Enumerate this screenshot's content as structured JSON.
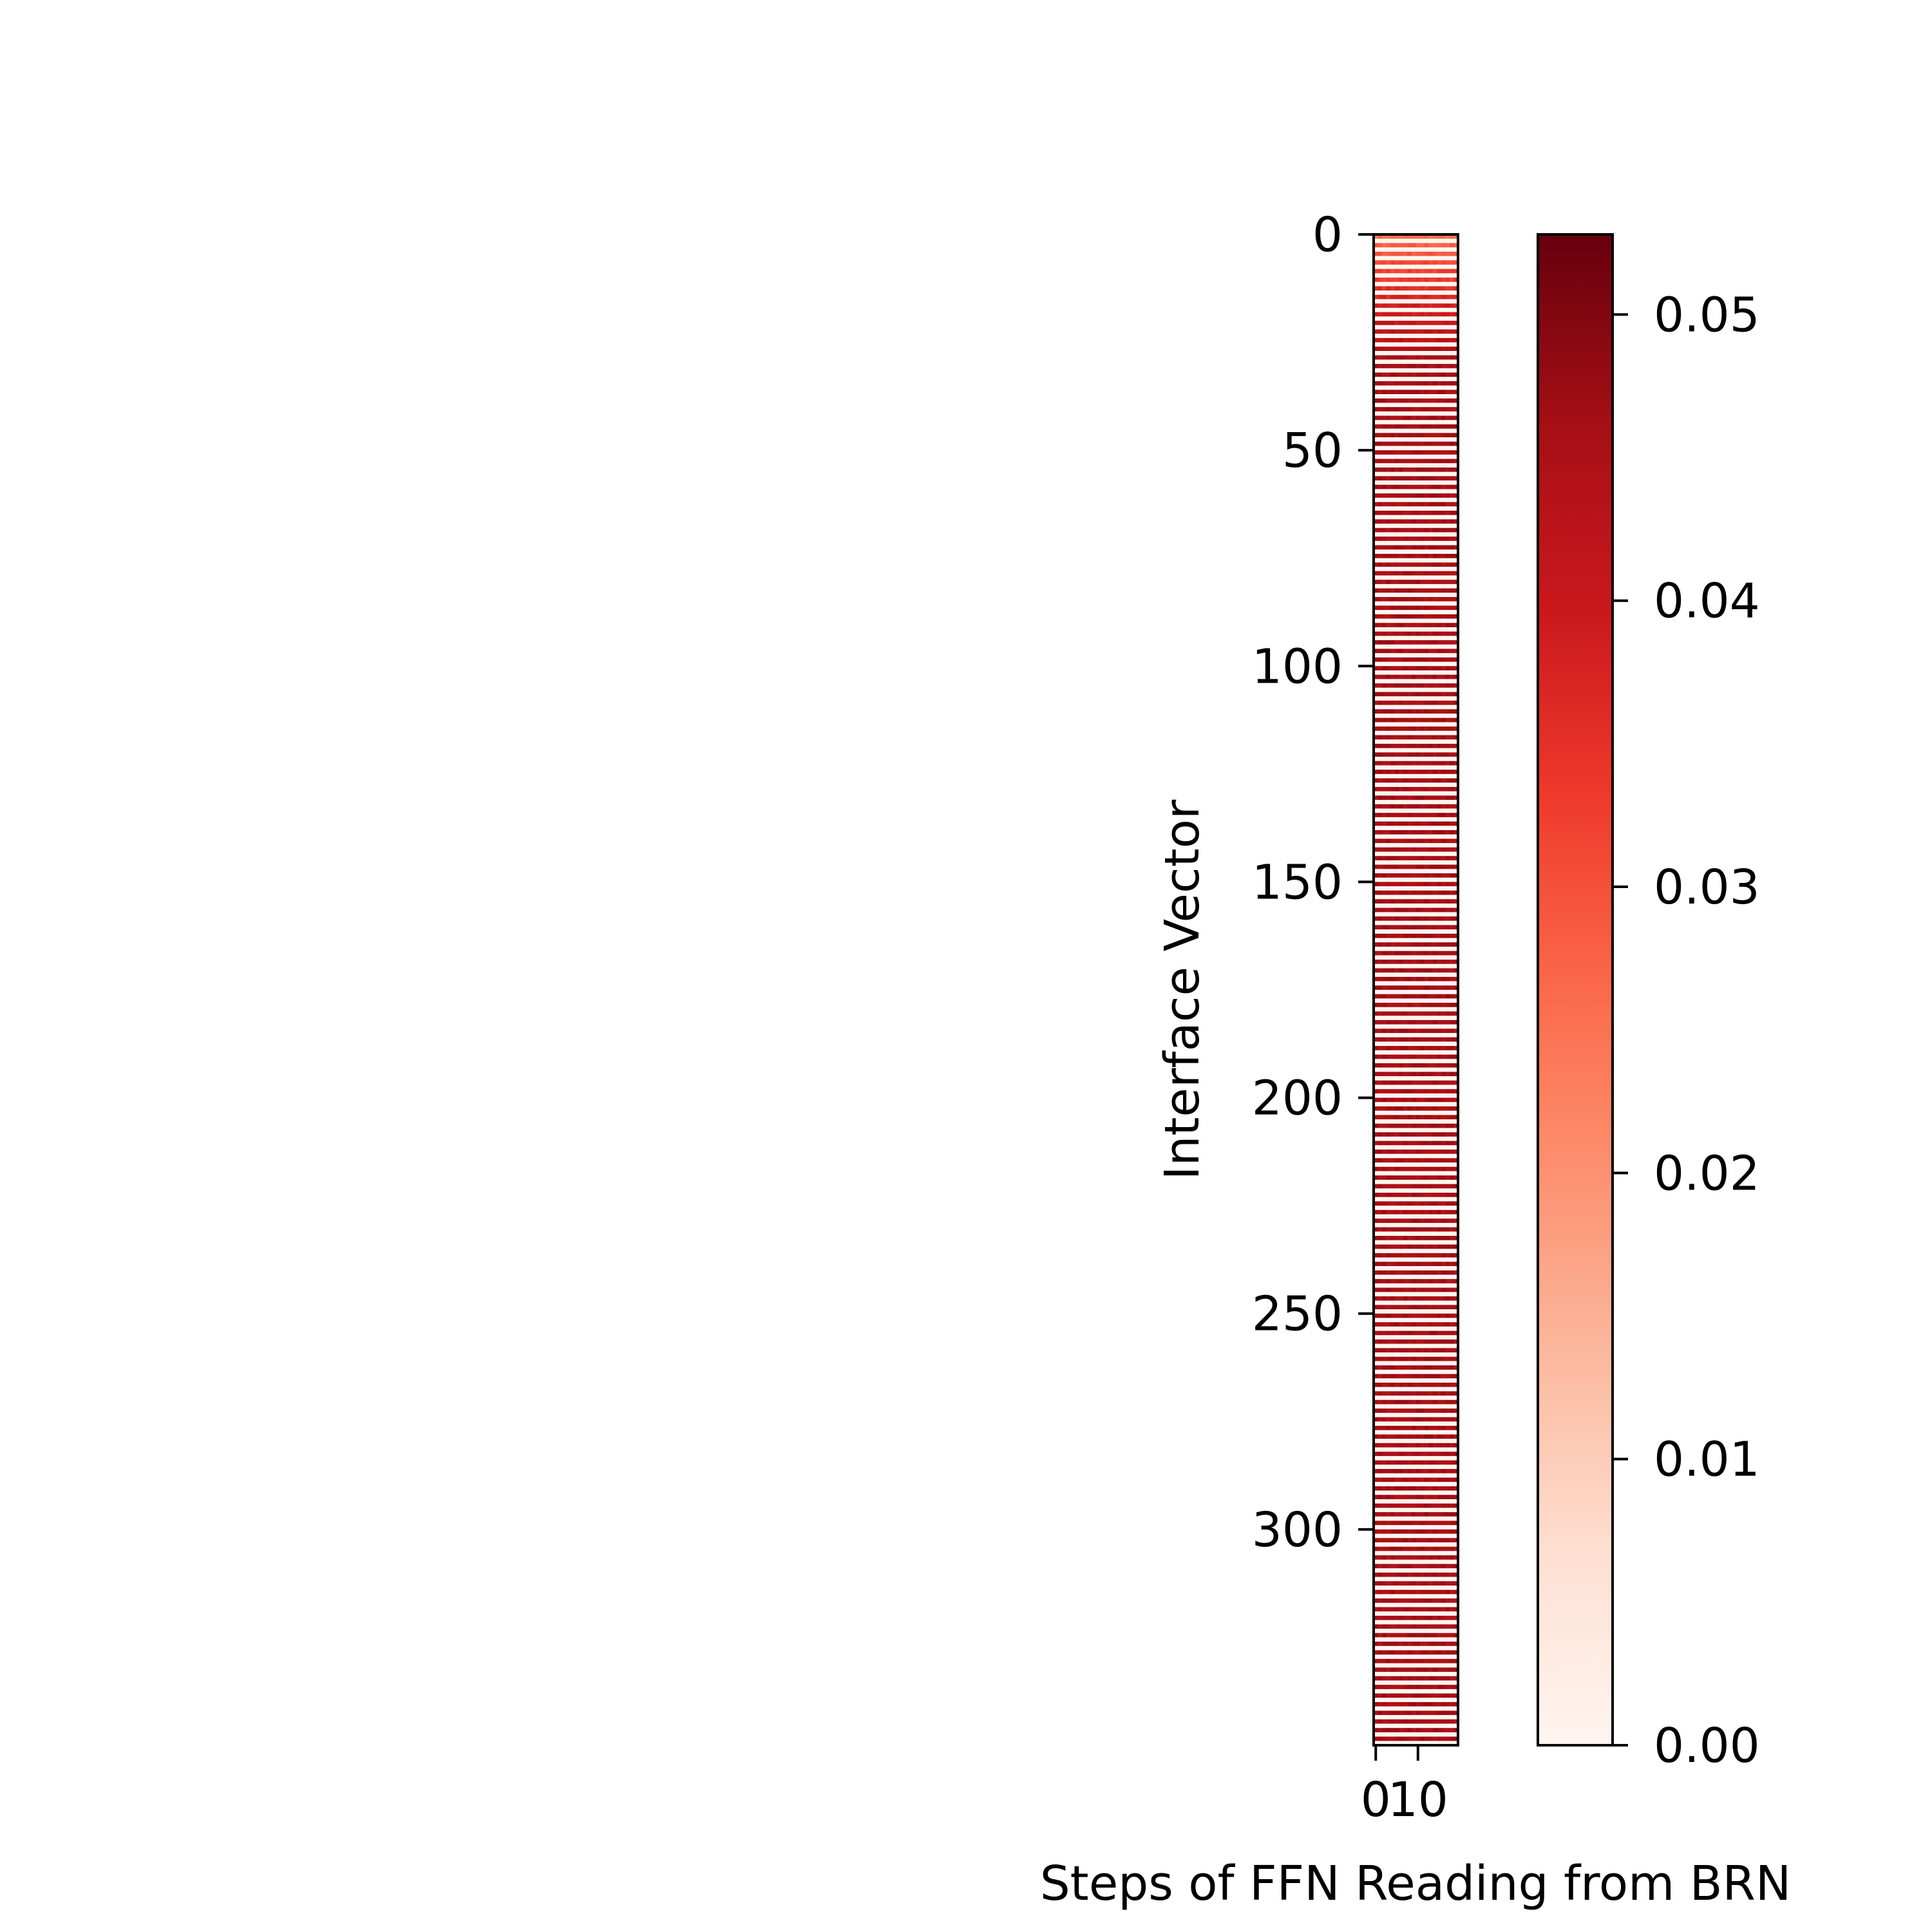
{
  "chart_data": {
    "type": "heatmap",
    "title": "",
    "xlabel": "Steps of FFN Reading from BRN",
    "ylabel": "Interface Vector",
    "rows": 350,
    "cols": 20,
    "y_ticks": [
      0,
      50,
      100,
      150,
      200,
      250,
      300
    ],
    "y_tick_labels": [
      "0",
      "50",
      "100",
      "150",
      "200",
      "250",
      "300"
    ],
    "x_ticks": [
      0,
      10
    ],
    "x_tick_labels": [
      "0",
      "10"
    ],
    "colormap": "Reds",
    "vmin": 0.0,
    "vmax": 0.0528,
    "colorbar_ticks": [
      0.0,
      0.01,
      0.02,
      0.03,
      0.04,
      0.05
    ],
    "colorbar_tick_labels": [
      "0.00",
      "0.01",
      "0.02",
      "0.03",
      "0.04",
      "0.05"
    ],
    "row_value_profile": {
      "description_rows": [
        0,
        10,
        20,
        30,
        350
      ],
      "values": [
        0.026,
        0.034,
        0.041,
        0.046,
        0.046
      ]
    },
    "stripe_period_rows": 2,
    "colormap_stops": [
      "#fff5f0",
      "#fee0d2",
      "#fcbba1",
      "#fc9272",
      "#fb6a4a",
      "#ef3b2c",
      "#cb181d",
      "#a50f15",
      "#67000d"
    ]
  }
}
